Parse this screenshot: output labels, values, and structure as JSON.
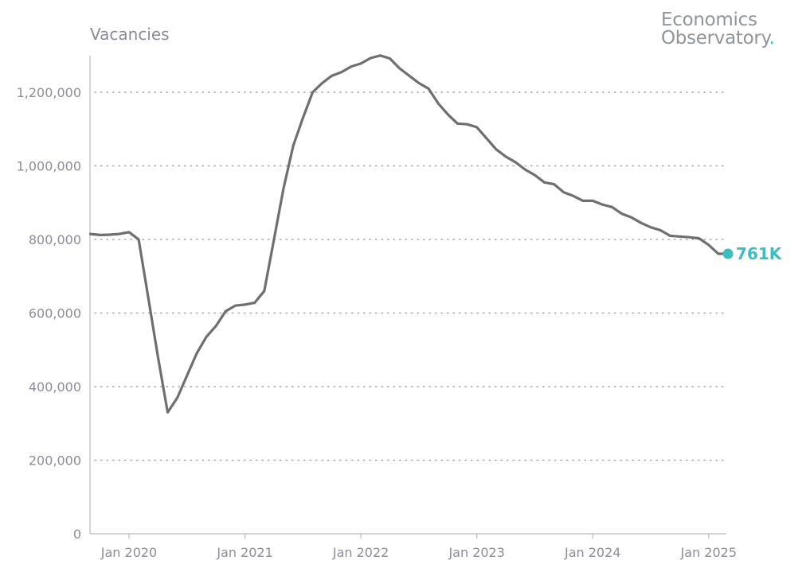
{
  "brand": {
    "line1": "Economics",
    "line2": "Observatory",
    "dot": "."
  },
  "colors": {
    "line": "#6f6f6f",
    "accent": "#3dbdc0",
    "axis_text": "#8e8c9b",
    "grid": "#a7a7a7"
  },
  "chart_data": {
    "type": "line",
    "title": "Vacancies",
    "xlabel": "",
    "ylabel": "Vacancies",
    "grid": "horizontal dotted",
    "ylim": [
      0,
      1300000
    ],
    "xlim": [
      "2019-09",
      "2025-03"
    ],
    "yticks": [
      {
        "value": 0,
        "label": "0"
      },
      {
        "value": 200000,
        "label": "200,000"
      },
      {
        "value": 400000,
        "label": "400,000"
      },
      {
        "value": 600000,
        "label": "600,000"
      },
      {
        "value": 800000,
        "label": "800,000"
      },
      {
        "value": 1000000,
        "label": "1,000,000"
      },
      {
        "value": 1200000,
        "label": "1,200,000"
      }
    ],
    "xticks": [
      {
        "value": "2020-01",
        "label": "Jan 2020"
      },
      {
        "value": "2021-01",
        "label": "Jan 2021"
      },
      {
        "value": "2022-01",
        "label": "Jan 2022"
      },
      {
        "value": "2023-01",
        "label": "Jan 2023"
      },
      {
        "value": "2024-01",
        "label": "Jan 2024"
      },
      {
        "value": "2025-01",
        "label": "Jan 2025"
      }
    ],
    "series": [
      {
        "x": [
          "2019-09",
          "2019-10",
          "2019-11",
          "2019-12",
          "2020-01",
          "2020-02",
          "2020-03",
          "2020-04",
          "2020-05",
          "2020-06",
          "2020-07",
          "2020-08",
          "2020-09",
          "2020-10",
          "2020-11",
          "2020-12",
          "2021-01",
          "2021-02",
          "2021-03",
          "2021-04",
          "2021-05",
          "2021-06",
          "2021-07",
          "2021-08",
          "2021-09",
          "2021-10",
          "2021-11",
          "2021-12",
          "2022-01",
          "2022-02",
          "2022-03",
          "2022-04",
          "2022-05",
          "2022-06",
          "2022-07",
          "2022-08",
          "2022-09",
          "2022-10",
          "2022-11",
          "2022-12",
          "2023-01",
          "2023-02",
          "2023-03",
          "2023-04",
          "2023-05",
          "2023-06",
          "2023-07",
          "2023-08",
          "2023-09",
          "2023-10",
          "2023-11",
          "2023-12",
          "2024-01",
          "2024-02",
          "2024-03",
          "2024-04",
          "2024-05",
          "2024-06",
          "2024-07",
          "2024-08",
          "2024-09",
          "2024-10",
          "2024-11",
          "2024-12",
          "2025-01",
          "2025-02",
          "2025-03"
        ],
        "values": [
          815000,
          812000,
          813000,
          815000,
          820000,
          800000,
          640000,
          480000,
          330000,
          370000,
          430000,
          490000,
          535000,
          565000,
          605000,
          620000,
          623000,
          628000,
          660000,
          800000,
          940000,
          1055000,
          1130000,
          1200000,
          1225000,
          1245000,
          1255000,
          1270000,
          1278000,
          1293000,
          1300000,
          1292000,
          1265000,
          1245000,
          1225000,
          1210000,
          1170000,
          1140000,
          1115000,
          1113000,
          1105000,
          1075000,
          1045000,
          1025000,
          1010000,
          990000,
          975000,
          955000,
          950000,
          928000,
          918000,
          905000,
          905000,
          895000,
          888000,
          870000,
          860000,
          845000,
          833000,
          825000,
          810000,
          808000,
          806000,
          803000,
          785000,
          761000,
          761000
        ]
      }
    ],
    "annotations": [
      {
        "text": "761K",
        "x": "2025-03",
        "y": 761000
      }
    ]
  }
}
